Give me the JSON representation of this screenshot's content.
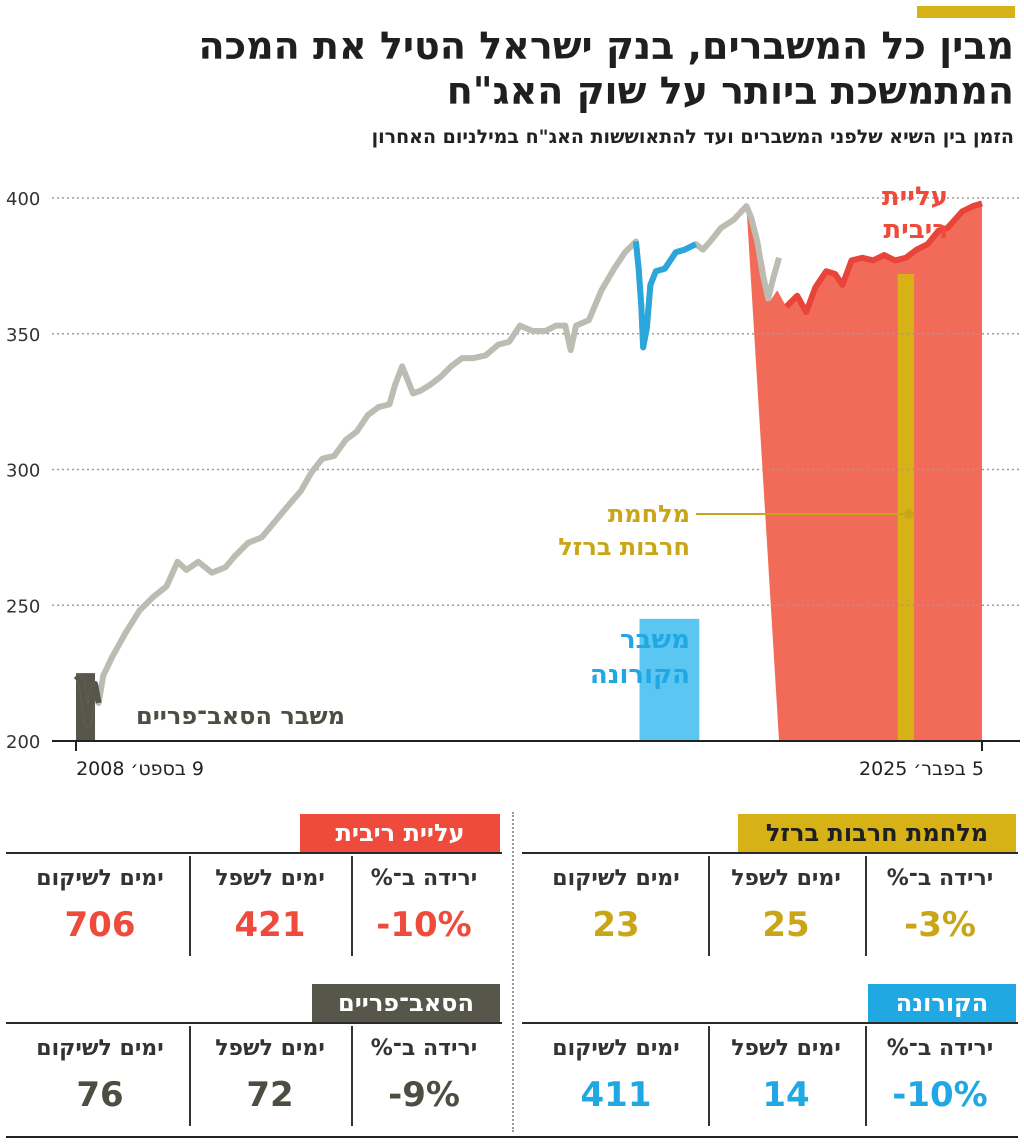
{
  "header": {
    "title": "מבין כל המשברים, בנק ישראל הטיל את המכה המתמשכת ביותר על שוק האג\"ח",
    "subtitle": "הזמן בין השיא שלפני המשברים ועד להתאוששות האג\"ח במילניום האחרון"
  },
  "colors": {
    "line": "#bcbcb2",
    "subprime": "#56574a",
    "corona": "#5bc6f1",
    "rate_hike": "#f26b58",
    "rate_hike_line": "#e8443a",
    "iron_swords": "#d7b216",
    "corona_text": "#20a8e3",
    "rate_text": "#ef4b3c",
    "iron_text": "#c9a617",
    "subprime_text": "#4d4e42"
  },
  "chart_data": {
    "type": "line",
    "ylim": [
      200,
      400
    ],
    "yticks": [
      "200",
      "250",
      "300",
      "350",
      "400"
    ],
    "x_start_label": "9 בספט׳ 2008",
    "x_end_label": "5 בפבר׳ 2025",
    "series": [
      {
        "points": [
          [
            0.0,
            224
          ],
          [
            0.006,
            222
          ],
          [
            0.01,
            213
          ],
          [
            0.013,
            206
          ],
          [
            0.015,
            209
          ],
          [
            0.018,
            218
          ],
          [
            0.021,
            221
          ],
          [
            0.025,
            214
          ],
          [
            0.03,
            224
          ],
          [
            0.04,
            231
          ],
          [
            0.055,
            240
          ],
          [
            0.07,
            248
          ],
          [
            0.085,
            253
          ],
          [
            0.1,
            257
          ],
          [
            0.112,
            266
          ],
          [
            0.122,
            263
          ],
          [
            0.135,
            266
          ],
          [
            0.15,
            262
          ],
          [
            0.165,
            264
          ],
          [
            0.175,
            268
          ],
          [
            0.19,
            273
          ],
          [
            0.205,
            275
          ],
          [
            0.22,
            281
          ],
          [
            0.235,
            287
          ],
          [
            0.248,
            292
          ],
          [
            0.26,
            299
          ],
          [
            0.272,
            304
          ],
          [
            0.285,
            305
          ],
          [
            0.298,
            311
          ],
          [
            0.31,
            314
          ],
          [
            0.322,
            320
          ],
          [
            0.334,
            323
          ],
          [
            0.346,
            324
          ],
          [
            0.352,
            331
          ],
          [
            0.36,
            338
          ],
          [
            0.366,
            333
          ],
          [
            0.372,
            328
          ],
          [
            0.38,
            329
          ],
          [
            0.39,
            331
          ],
          [
            0.402,
            334
          ],
          [
            0.414,
            338
          ],
          [
            0.426,
            341
          ],
          [
            0.438,
            341
          ],
          [
            0.452,
            342
          ],
          [
            0.466,
            346
          ],
          [
            0.478,
            347
          ],
          [
            0.49,
            353
          ],
          [
            0.504,
            351
          ],
          [
            0.518,
            351
          ],
          [
            0.53,
            353
          ],
          [
            0.54,
            353
          ],
          [
            0.546,
            344
          ],
          [
            0.552,
            353
          ],
          [
            0.566,
            355
          ],
          [
            0.58,
            366
          ],
          [
            0.594,
            374
          ],
          [
            0.606,
            380
          ],
          [
            0.618,
            384
          ],
          [
            0.621,
            374
          ],
          [
            0.624,
            360
          ],
          [
            0.626,
            345
          ],
          [
            0.63,
            352
          ],
          [
            0.634,
            368
          ],
          [
            0.64,
            373
          ],
          [
            0.65,
            374
          ],
          [
            0.662,
            380
          ],
          [
            0.672,
            381
          ],
          [
            0.684,
            383
          ],
          [
            0.692,
            381
          ],
          [
            0.7,
            384
          ],
          [
            0.712,
            389
          ],
          [
            0.726,
            392
          ],
          [
            0.74,
            397
          ],
          [
            0.745,
            393
          ],
          [
            0.752,
            384
          ],
          [
            0.758,
            372
          ],
          [
            0.764,
            363
          ],
          [
            0.77,
            371
          ],
          [
            0.776,
            378
          ]
        ]
      },
      {
        "points": [
          [
            0.74,
            397
          ],
          [
            0.75,
            388
          ],
          [
            0.76,
            375
          ],
          [
            0.766,
            362
          ],
          [
            0.774,
            366
          ],
          [
            0.784,
            360
          ],
          [
            0.796,
            364
          ],
          [
            0.806,
            358
          ],
          [
            0.816,
            367
          ],
          [
            0.828,
            373
          ],
          [
            0.838,
            372
          ],
          [
            0.846,
            368
          ],
          [
            0.856,
            377
          ],
          [
            0.868,
            378
          ],
          [
            0.88,
            377
          ],
          [
            0.892,
            379
          ],
          [
            0.904,
            377
          ],
          [
            0.916,
            378
          ],
          [
            0.928,
            381
          ],
          [
            0.94,
            383
          ],
          [
            0.952,
            388
          ],
          [
            0.962,
            389
          ],
          [
            0.97,
            392
          ],
          [
            0.978,
            395
          ],
          [
            0.99,
            397
          ],
          [
            1.0,
            398
          ]
        ]
      }
    ],
    "crises": [
      {
        "name": "משבר הסאב־פריים",
        "x0": 0.0,
        "x1": 0.021
      },
      {
        "name": "משבר הקורונה",
        "x0": 0.622,
        "x1": 0.688
      },
      {
        "name": "עליית ריבית",
        "x0": 0.776,
        "x1": 1.0
      },
      {
        "name": "מלחמת חרבות ברזל",
        "x0": 0.907,
        "x1": 0.925
      }
    ]
  },
  "annotations": {
    "subprime_line1": "משבר הסאב־פריים",
    "corona_line1": "משבר",
    "corona_line2": "הקורונה",
    "iron_line1": "מלחמת",
    "iron_line2": "חרבות ברזל",
    "rate_line1": "עליית",
    "rate_line2": "ריבית"
  },
  "tables": {
    "col_drop": "ירידה ב־%",
    "col_days_bottom": "ימים לשפל",
    "col_days_recovery": "ימים לשיקום",
    "iron_swords": {
      "title": "מלחמת חרבות ברזל",
      "drop": "-3%",
      "days_bottom": "25",
      "days_recovery": "23"
    },
    "rate_hike": {
      "title": "עליית ריבית",
      "drop": "-10%",
      "days_bottom": "421",
      "days_recovery": "706"
    },
    "corona": {
      "title": "הקורונה",
      "drop": "-10%",
      "days_bottom": "14",
      "days_recovery": "411"
    },
    "subprime": {
      "title": "הסאב־פריים",
      "drop": "-9%",
      "days_bottom": "72",
      "days_recovery": "76"
    }
  }
}
